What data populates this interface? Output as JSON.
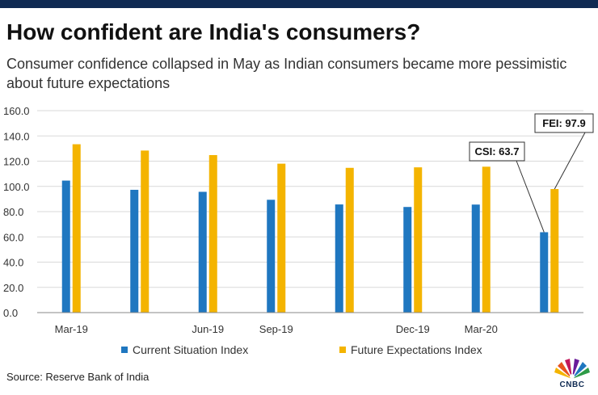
{
  "header": {
    "title": "How confident are India's consumers?",
    "subtitle": "Consumer confidence collapsed in May as Indian consumers became more pessimistic about future expectations"
  },
  "source": "Source: Reserve Bank of India",
  "logo": {
    "text": "CNBC"
  },
  "colors": {
    "csi": "#1f77c0",
    "fei": "#f4b400",
    "grid": "#d9d9d9",
    "topbar": "#0f2a52"
  },
  "chart_data": {
    "type": "bar",
    "title": "",
    "xlabel": "",
    "ylabel": "",
    "ylim": [
      0,
      160
    ],
    "ytick_labels": [
      "0.0",
      "20.0",
      "40.0",
      "60.0",
      "80.0",
      "100.0",
      "120.0",
      "140.0",
      "160.0"
    ],
    "x_tick_labels": [
      {
        "label": "Mar-19",
        "at": 0
      },
      {
        "label": "Jun-19",
        "at": 2
      },
      {
        "label": "Sep-19",
        "at": 3
      },
      {
        "label": "Dec-19",
        "at": 5
      },
      {
        "label": "Mar-20",
        "at": 6
      }
    ],
    "categories": [
      "",
      "",
      "",
      "",
      "",
      "",
      "",
      ""
    ],
    "grid": true,
    "legend_position": "bottom",
    "series": [
      {
        "name": "Current Situation Index",
        "color": "#1f77c0",
        "values": [
          104.6,
          97.3,
          95.7,
          89.4,
          85.7,
          83.7,
          85.6,
          63.7
        ]
      },
      {
        "name": "Future Expectations Index",
        "color": "#f4b400",
        "values": [
          133.4,
          128.4,
          124.8,
          118.0,
          114.7,
          115.1,
          115.6,
          97.9
        ]
      }
    ],
    "annotations": [
      {
        "text": "CSI: 63.7",
        "series": 0,
        "index": 7
      },
      {
        "text": "FEI: 97.9",
        "series": 1,
        "index": 7
      }
    ]
  }
}
